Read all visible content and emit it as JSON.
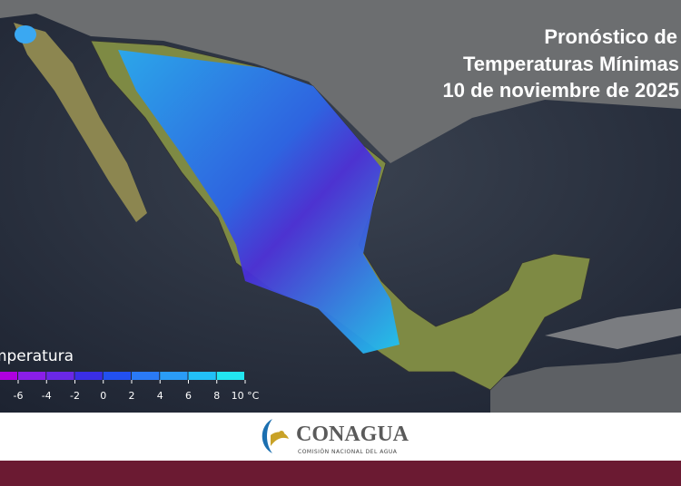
{
  "header": {
    "title_lines": [
      "Pronóstico de",
      "Temperaturas Mínimas",
      "10 de noviembre de 2025"
    ]
  },
  "legend": {
    "title": "Temperatura",
    "ticks": [
      -6,
      -4,
      -2,
      0,
      2,
      4,
      6,
      8,
      {
        "value": 10,
        "label": "10 °C"
      }
    ],
    "colors": [
      "#b000e0",
      "#8a1ee8",
      "#6a28e6",
      "#3a2ee6",
      "#2250f0",
      "#2a7af5",
      "#2a9cf7",
      "#22c0f8",
      "#22e6f0"
    ]
  },
  "footer": {
    "logo_name": "CONAGUA",
    "logo_subtitle": "COMISIÓN NACIONAL DEL AGUA"
  }
}
